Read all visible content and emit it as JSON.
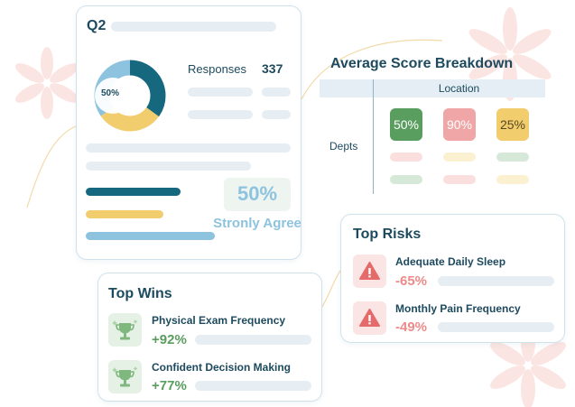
{
  "q2_card": {
    "title": "Q2",
    "donut_center": "50%",
    "responses_label": "Responses",
    "responses_value": "337",
    "summary_value": "50%",
    "summary_label": "Stronly Agree"
  },
  "score_breakdown": {
    "title": "Average Score Breakdown",
    "column_header": "Location",
    "row_header": "Depts",
    "cells": [
      {
        "value": "50%",
        "color": "#5a9e5f"
      },
      {
        "value": "90%",
        "color": "#f0a6a6"
      },
      {
        "value": "25%",
        "color": "#f1cd6e"
      }
    ]
  },
  "top_risks": {
    "title": "Top Risks",
    "items": [
      {
        "label": "Adequate Daily Sleep",
        "value": "-65%"
      },
      {
        "label": "Monthly Pain Frequency",
        "value": "-49%"
      }
    ]
  },
  "top_wins": {
    "title": "Top Wins",
    "items": [
      {
        "label": "Physical Exam Frequency",
        "value": "+92%"
      },
      {
        "label": "Confident Decision Making",
        "value": "+77%"
      }
    ]
  },
  "colors": {
    "teal": "#16687f",
    "yellow": "#f1cd6e",
    "light_blue": "#8dc3df",
    "negative": "#ef8a8a",
    "positive": "#5a9e5f"
  },
  "icons": {
    "risk": "warning-icon",
    "win": "trophy-icon"
  }
}
